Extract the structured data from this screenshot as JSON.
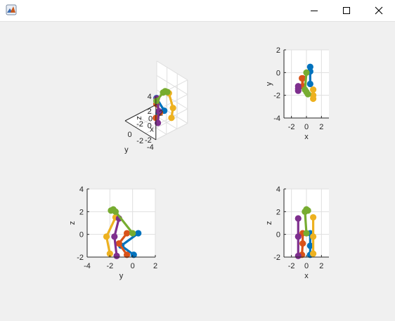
{
  "window": {
    "title": "",
    "icon_name": "matlab-logo-icon",
    "minimize_icon": "minimize-icon",
    "maximize_icon": "maximize-icon",
    "close_icon": "close-icon"
  },
  "colors": {
    "blue": "#0072bd",
    "orange": "#d95319",
    "yellow": "#edb120",
    "purple": "#7e2f8e",
    "green": "#77ac30",
    "axis": "#262626",
    "grid": "#dfdfdf",
    "plot_bg": "#ffffff",
    "figure_bg": "#f0f0f0"
  },
  "chart_data": [
    {
      "id": "iso",
      "type": "line",
      "view": "3d-isometric",
      "xlabel": "x",
      "ylabel": "y",
      "zlabel": "z",
      "xlim": [
        -4,
        2
      ],
      "ylim": [
        -4,
        2
      ],
      "zlim": [
        -2,
        4
      ],
      "xticks": [
        "-2",
        "0",
        "2"
      ],
      "yticks": [
        "-4",
        "-2",
        "0"
      ],
      "zticks": [
        "-2",
        "0",
        "2",
        "4"
      ]
    },
    {
      "id": "xy",
      "type": "line",
      "view": "top",
      "xlabel": "x",
      "ylabel": "y",
      "xlim": [
        -3,
        3
      ],
      "ylim": [
        -4,
        2
      ],
      "xticks": [
        "-2",
        "0",
        "2"
      ],
      "yticks": [
        "2",
        "0",
        "-2",
        "-4"
      ]
    },
    {
      "id": "yz",
      "type": "line",
      "view": "side",
      "xlabel": "y",
      "ylabel": "z",
      "xlim": [
        -4,
        2
      ],
      "ylim": [
        -2,
        4
      ],
      "xticks": [
        "-4",
        "-2",
        "0",
        "2"
      ],
      "yticks": [
        "4",
        "2",
        "0",
        "-2"
      ]
    },
    {
      "id": "xz",
      "type": "line",
      "view": "front",
      "xlabel": "x",
      "ylabel": "z",
      "xlim": [
        -3,
        3
      ],
      "ylim": [
        -2,
        4
      ],
      "xticks": [
        "-2",
        "0",
        "2"
      ],
      "yticks": [
        "4",
        "2",
        "0",
        "-2"
      ]
    }
  ],
  "limbs": [
    {
      "name": "blue-limb",
      "color": "#0072bd",
      "points": [
        [
          0.5,
          0.5,
          0.1
        ],
        [
          0.5,
          -1.0,
          -1.0
        ],
        [
          0.5,
          0.1,
          -1.8
        ]
      ]
    },
    {
      "name": "orange-limb",
      "color": "#d95319",
      "points": [
        [
          -0.5,
          -0.5,
          0.1
        ],
        [
          -0.5,
          -1.2,
          -0.8
        ],
        [
          -0.6,
          -0.5,
          -1.8
        ]
      ]
    },
    {
      "name": "yellow-limb",
      "color": "#edb120",
      "points": [
        [
          0.9,
          -1.5,
          1.5
        ],
        [
          0.9,
          -2.3,
          -0.2
        ],
        [
          0.9,
          -2.0,
          -1.7
        ]
      ]
    },
    {
      "name": "purple-limb",
      "color": "#7e2f8e",
      "points": [
        [
          -1.1,
          -1.2,
          1.4
        ],
        [
          -1.1,
          -1.6,
          -0.2
        ],
        [
          -1.1,
          -1.4,
          -1.9
        ]
      ]
    },
    {
      "name": "green-limb",
      "color": "#77ac30",
      "points": [
        [
          0.0,
          -1.7,
          2.2
        ],
        [
          0.2,
          -1.9,
          2.1
        ],
        [
          -0.2,
          -1.5,
          2.0
        ],
        [
          0.0,
          0.0,
          0.1
        ]
      ]
    }
  ]
}
